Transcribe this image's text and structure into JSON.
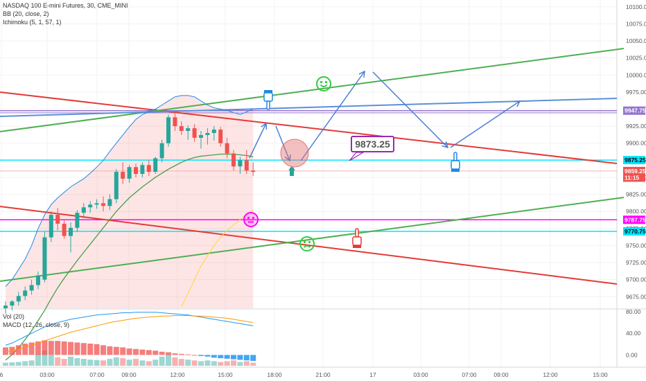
{
  "header": {
    "symbol_line": "NASDAQ 100 E-mini Futures, 30, CME_MINI",
    "bb_line": "BB (20, close, 2)",
    "ichimoku_line": "Ichimoku (5, 1, 57, 1)"
  },
  "lower_pane": {
    "vol_label": "Vol (20)",
    "macd_label": "MACD (12, 26, close, 9)",
    "scale_labels": [
      "80.00",
      "40.00",
      "0.00"
    ]
  },
  "annotation_box": {
    "text": "9873.25",
    "border_color": "#9c27b0"
  },
  "chart_data": {
    "type": "line",
    "title": "",
    "xlabel": "",
    "ylabel": "",
    "x_ticks": [
      "6",
      "03:00",
      "07:00",
      "09:00",
      "12:00",
      "15:00",
      "18:00",
      "21:00",
      "17",
      "03:00",
      "07:00",
      "09:00",
      "12:00",
      "15:00"
    ],
    "y_ticks": [
      10100,
      10075,
      10050,
      10025,
      10000,
      9975,
      9950,
      9925,
      9900,
      9875,
      9850,
      9825,
      9800,
      9775,
      9750,
      9725,
      9700,
      9675
    ],
    "y_tick_labels": [
      "10100.00",
      "10075.00",
      "10050.00",
      "10025.00",
      "10000.00",
      "9975.00",
      "9950.00",
      "9925.00",
      "9900.00",
      "9875.00",
      "9850.00",
      "9825.00",
      "9800.00",
      "9775.00",
      "9750.00",
      "9725.00",
      "9700.00",
      "9675.00"
    ],
    "ylim": [
      9658,
      10110
    ],
    "price_tags": [
      {
        "label": "9947.75",
        "value": 9947.75,
        "color": "#9575cd"
      },
      {
        "label": "9875.25",
        "value": 9875.25,
        "color": "#00e5ff"
      },
      {
        "label": "9859.25",
        "value": 9859.25,
        "color": "#ef5350"
      },
      {
        "label": "11:15",
        "value": 9849.5,
        "color": "#ef5350"
      },
      {
        "label": "9787.75",
        "value": 9787.75,
        "color": "#ff00ff"
      },
      {
        "label": "9770.75",
        "value": 9770.75,
        "color": "#00e5ff"
      }
    ],
    "candles": [
      {
        "o": 9658,
        "h": 9668,
        "l": 9650,
        "c": 9662
      },
      {
        "o": 9662,
        "h": 9670,
        "l": 9655,
        "c": 9668
      },
      {
        "o": 9668,
        "h": 9682,
        "l": 9662,
        "c": 9676
      },
      {
        "o": 9676,
        "h": 9690,
        "l": 9670,
        "c": 9684
      },
      {
        "o": 9684,
        "h": 9700,
        "l": 9678,
        "c": 9692
      },
      {
        "o": 9692,
        "h": 9712,
        "l": 9686,
        "c": 9706
      },
      {
        "o": 9700,
        "h": 9770,
        "l": 9696,
        "c": 9762
      },
      {
        "o": 9762,
        "h": 9800,
        "l": 9755,
        "c": 9795
      },
      {
        "o": 9795,
        "h": 9805,
        "l": 9772,
        "c": 9782
      },
      {
        "o": 9782,
        "h": 9788,
        "l": 9760,
        "c": 9764
      },
      {
        "o": 9764,
        "h": 9784,
        "l": 9740,
        "c": 9776
      },
      {
        "o": 9776,
        "h": 9802,
        "l": 9770,
        "c": 9798
      },
      {
        "o": 9798,
        "h": 9812,
        "l": 9790,
        "c": 9806
      },
      {
        "o": 9806,
        "h": 9815,
        "l": 9798,
        "c": 9810
      },
      {
        "o": 9810,
        "h": 9818,
        "l": 9804,
        "c": 9812
      },
      {
        "o": 9812,
        "h": 9822,
        "l": 9800,
        "c": 9808
      },
      {
        "o": 9808,
        "h": 9825,
        "l": 9802,
        "c": 9818
      },
      {
        "o": 9818,
        "h": 9862,
        "l": 9812,
        "c": 9858
      },
      {
        "o": 9858,
        "h": 9872,
        "l": 9840,
        "c": 9848
      },
      {
        "o": 9848,
        "h": 9868,
        "l": 9842,
        "c": 9865
      },
      {
        "o": 9865,
        "h": 9870,
        "l": 9850,
        "c": 9855
      },
      {
        "o": 9855,
        "h": 9872,
        "l": 9850,
        "c": 9868
      },
      {
        "o": 9868,
        "h": 9875,
        "l": 9852,
        "c": 9858
      },
      {
        "o": 9858,
        "h": 9880,
        "l": 9855,
        "c": 9878
      },
      {
        "o": 9878,
        "h": 9905,
        "l": 9872,
        "c": 9900
      },
      {
        "o": 9900,
        "h": 9942,
        "l": 9895,
        "c": 9938
      },
      {
        "o": 9938,
        "h": 9946,
        "l": 9918,
        "c": 9925
      },
      {
        "o": 9925,
        "h": 9932,
        "l": 9912,
        "c": 9918
      },
      {
        "o": 9918,
        "h": 9926,
        "l": 9905,
        "c": 9922
      },
      {
        "o": 9922,
        "h": 9928,
        "l": 9902,
        "c": 9908
      },
      {
        "o": 9908,
        "h": 9918,
        "l": 9892,
        "c": 9912
      },
      {
        "o": 9912,
        "h": 9922,
        "l": 9898,
        "c": 9915
      },
      {
        "o": 9915,
        "h": 9925,
        "l": 9904,
        "c": 9920
      },
      {
        "o": 9920,
        "h": 9924,
        "l": 9895,
        "c": 9900
      },
      {
        "o": 9900,
        "h": 9908,
        "l": 9878,
        "c": 9885
      },
      {
        "o": 9885,
        "h": 9890,
        "l": 9860,
        "c": 9866
      },
      {
        "o": 9866,
        "h": 9880,
        "l": 9855,
        "c": 9875
      },
      {
        "o": 9875,
        "h": 9890,
        "l": 9855,
        "c": 9860
      },
      {
        "o": 9860,
        "h": 9872,
        "l": 9852,
        "c": 9858
      }
    ],
    "bb_upper": [
      9690,
      9700,
      9715,
      9730,
      9750,
      9775,
      9795,
      9810,
      9820,
      9828,
      9836,
      9842,
      9848,
      9856,
      9865,
      9875,
      9888,
      9900,
      9912,
      9924,
      9935,
      9942,
      9946,
      9950,
      9956,
      9962,
      9968,
      9970,
      9970,
      9968,
      9962,
      9956,
      9952,
      9950,
      9948,
      9945,
      9942,
      9946,
      9950
    ],
    "bb_middle": [
      9582,
      9590,
      9600,
      9612,
      9625,
      9640,
      9655,
      9672,
      9688,
      9702,
      9715,
      9728,
      9740,
      9752,
      9764,
      9776,
      9788,
      9800,
      9810,
      9820,
      9828,
      9836,
      9843,
      9850,
      9856,
      9862,
      9867,
      9872,
      9876,
      9879,
      9881,
      9882,
      9883,
      9884,
      9884,
      9884,
      9883,
      9882,
      9880
    ],
    "ichimoku_line": [
      null,
      null,
      null,
      null,
      null,
      null,
      null,
      null,
      null,
      null,
      null,
      null,
      null,
      null,
      null,
      null,
      null,
      null,
      null,
      null,
      null,
      null,
      null,
      null,
      null,
      null,
      null,
      9660,
      9680,
      9700,
      9720,
      9735,
      9750,
      9762,
      9772,
      9780,
      9788,
      9796,
      9802
    ],
    "macd_line": [
      18,
      22,
      28,
      34,
      40,
      46,
      52,
      56,
      60,
      63,
      66,
      68,
      70,
      72,
      74,
      75,
      76,
      77,
      78,
      78,
      79,
      79,
      79,
      79,
      78,
      77,
      76,
      75,
      74,
      72,
      70,
      68,
      66,
      64,
      62,
      60,
      58,
      56,
      54
    ],
    "signal_line": [
      5,
      8,
      11,
      14,
      18,
      22,
      26,
      30,
      34,
      38,
      42,
      45,
      48,
      51,
      54,
      57,
      60,
      62,
      64,
      66,
      68,
      69,
      70,
      71,
      72,
      72,
      73,
      73,
      73,
      72,
      72,
      71,
      70,
      69,
      68,
      66,
      64,
      62,
      60
    ],
    "macd_hist": [
      14,
      15,
      18,
      21,
      23,
      25,
      27,
      26,
      26,
      25,
      24,
      23,
      22,
      21,
      20,
      18,
      16,
      15,
      14,
      12,
      11,
      10,
      9,
      8,
      6,
      5,
      3,
      2,
      1,
      0,
      -2,
      -3,
      -5,
      -6,
      -7,
      -8,
      -9,
      -10,
      -11
    ],
    "volume": [
      8,
      9,
      10,
      12,
      14,
      30,
      40,
      28,
      22,
      18,
      24,
      20,
      18,
      16,
      15,
      14,
      18,
      22,
      20,
      16,
      18,
      14,
      12,
      16,
      24,
      30,
      22,
      18,
      16,
      14,
      12,
      14,
      12,
      10,
      12,
      14,
      10,
      12,
      8
    ]
  }
}
